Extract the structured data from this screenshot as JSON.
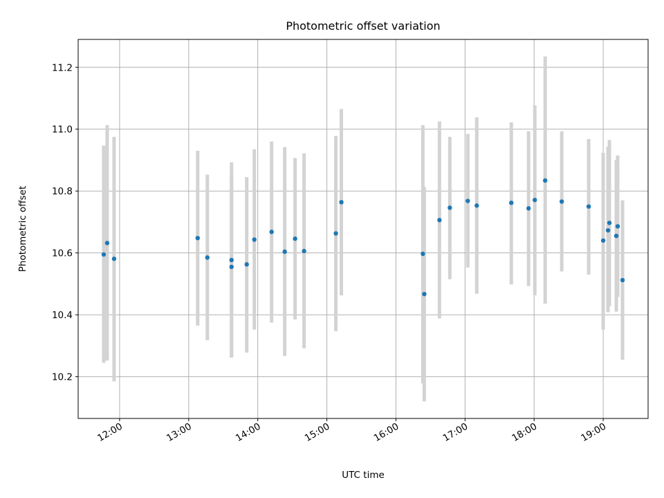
{
  "chart_data": {
    "type": "scatter",
    "title": "Photometric offset variation",
    "xlabel": "UTC time",
    "ylabel": "Photometric offset",
    "xlim_hours": [
      11.4,
      19.65
    ],
    "ylim": [
      10.065,
      11.29
    ],
    "x_ticks": [
      {
        "hour": 12,
        "label": "12:00"
      },
      {
        "hour": 13,
        "label": "13:00"
      },
      {
        "hour": 14,
        "label": "14:00"
      },
      {
        "hour": 15,
        "label": "15:00"
      },
      {
        "hour": 16,
        "label": "16:00"
      },
      {
        "hour": 17,
        "label": "17:00"
      },
      {
        "hour": 18,
        "label": "18:00"
      },
      {
        "hour": 19,
        "label": "19:00"
      }
    ],
    "y_ticks": [
      {
        "value": 10.2,
        "label": "10.2"
      },
      {
        "value": 10.4,
        "label": "10.4"
      },
      {
        "value": 10.6,
        "label": "10.6"
      },
      {
        "value": 10.8,
        "label": "10.8"
      },
      {
        "value": 11.0,
        "label": "11.0"
      },
      {
        "value": 11.2,
        "label": "11.2"
      }
    ],
    "grid": true,
    "point_color": "#1f77b4",
    "errorbar_color": "#d3d3d3",
    "points": [
      {
        "x": 11.77,
        "y": 10.595,
        "err_low": 10.245,
        "err_high": 10.947
      },
      {
        "x": 11.82,
        "y": 10.632,
        "err_low": 10.252,
        "err_high": 11.013
      },
      {
        "x": 11.92,
        "y": 10.581,
        "err_low": 10.185,
        "err_high": 10.975
      },
      {
        "x": 13.13,
        "y": 10.648,
        "err_low": 10.365,
        "err_high": 10.93
      },
      {
        "x": 13.27,
        "y": 10.585,
        "err_low": 10.318,
        "err_high": 10.853
      },
      {
        "x": 13.62,
        "y": 10.577,
        "err_low": 10.262,
        "err_high": 10.893
      },
      {
        "x": 13.62,
        "y": 10.555,
        "err_low": 10.262,
        "err_high": 10.85
      },
      {
        "x": 13.84,
        "y": 10.563,
        "err_low": 10.278,
        "err_high": 10.845
      },
      {
        "x": 13.95,
        "y": 10.643,
        "err_low": 10.352,
        "err_high": 10.935
      },
      {
        "x": 14.2,
        "y": 10.668,
        "err_low": 10.375,
        "err_high": 10.96
      },
      {
        "x": 14.39,
        "y": 10.604,
        "err_low": 10.267,
        "err_high": 10.942
      },
      {
        "x": 14.54,
        "y": 10.646,
        "err_low": 10.385,
        "err_high": 10.907
      },
      {
        "x": 14.67,
        "y": 10.606,
        "err_low": 10.292,
        "err_high": 10.922
      },
      {
        "x": 15.13,
        "y": 10.663,
        "err_low": 10.347,
        "err_high": 10.978
      },
      {
        "x": 15.21,
        "y": 10.764,
        "err_low": 10.463,
        "err_high": 11.065
      },
      {
        "x": 16.39,
        "y": 10.597,
        "err_low": 10.178,
        "err_high": 11.013
      },
      {
        "x": 16.41,
        "y": 10.467,
        "err_low": 10.12,
        "err_high": 10.813
      },
      {
        "x": 16.63,
        "y": 10.706,
        "err_low": 10.388,
        "err_high": 11.025
      },
      {
        "x": 16.78,
        "y": 10.746,
        "err_low": 10.515,
        "err_high": 10.975
      },
      {
        "x": 17.04,
        "y": 10.768,
        "err_low": 10.553,
        "err_high": 10.985
      },
      {
        "x": 17.17,
        "y": 10.753,
        "err_low": 10.468,
        "err_high": 11.038
      },
      {
        "x": 17.67,
        "y": 10.762,
        "err_low": 10.498,
        "err_high": 11.022
      },
      {
        "x": 17.92,
        "y": 10.744,
        "err_low": 10.493,
        "err_high": 10.993
      },
      {
        "x": 18.01,
        "y": 10.771,
        "err_low": 10.463,
        "err_high": 11.077
      },
      {
        "x": 18.16,
        "y": 10.834,
        "err_low": 10.436,
        "err_high": 11.235
      },
      {
        "x": 18.4,
        "y": 10.766,
        "err_low": 10.54,
        "err_high": 10.993
      },
      {
        "x": 18.79,
        "y": 10.75,
        "err_low": 10.53,
        "err_high": 10.968
      },
      {
        "x": 19.0,
        "y": 10.64,
        "err_low": 10.352,
        "err_high": 10.923
      },
      {
        "x": 19.07,
        "y": 10.673,
        "err_low": 10.408,
        "err_high": 10.943
      },
      {
        "x": 19.09,
        "y": 10.697,
        "err_low": 10.428,
        "err_high": 10.965
      },
      {
        "x": 19.19,
        "y": 10.655,
        "err_low": 10.41,
        "err_high": 10.9
      },
      {
        "x": 19.21,
        "y": 10.686,
        "err_low": 10.458,
        "err_high": 10.915
      },
      {
        "x": 19.28,
        "y": 10.512,
        "err_low": 10.255,
        "err_high": 10.77
      }
    ]
  }
}
